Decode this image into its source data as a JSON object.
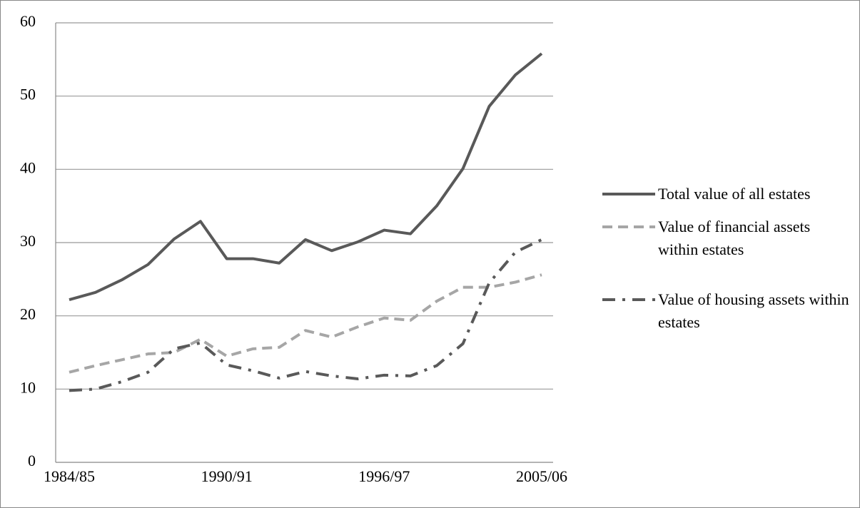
{
  "chart_data": {
    "type": "line",
    "categories": [
      "1984/85",
      null,
      null,
      null,
      null,
      null,
      "1990/91",
      null,
      null,
      null,
      null,
      null,
      "1996/97",
      null,
      null,
      null,
      null,
      null,
      "2005/06"
    ],
    "series": [
      {
        "name": "Total value of all estates",
        "color": "#595959",
        "dash": "solid",
        "values": [
          22.2,
          23.2,
          24.9,
          27.0,
          30.5,
          32.9,
          27.8,
          27.8,
          27.2,
          30.4,
          28.9,
          30.1,
          31.7,
          31.2,
          35.0,
          40.1,
          48.6,
          52.9,
          55.8
        ]
      },
      {
        "name": "Value of financial assets within estates",
        "color": "#a6a6a6",
        "dash": "dashed",
        "values": [
          12.3,
          13.2,
          14.0,
          14.8,
          15.0,
          16.8,
          14.5,
          15.5,
          15.7,
          18.0,
          17.1,
          18.5,
          19.7,
          19.4,
          22.0,
          23.9,
          23.9,
          24.6,
          25.6
        ]
      },
      {
        "name": "Value of housing assets within estates",
        "color": "#595959",
        "dash": "dashdot",
        "values": [
          9.8,
          10.0,
          11.0,
          12.3,
          15.5,
          16.3,
          13.3,
          12.5,
          11.5,
          12.4,
          11.8,
          11.4,
          11.9,
          11.8,
          13.2,
          16.2,
          24.5,
          28.7,
          30.4
        ]
      }
    ],
    "ylim": [
      0,
      60
    ],
    "yticks": [
      0,
      10,
      20,
      30,
      40,
      50,
      60
    ],
    "grid": true,
    "legend": "right"
  }
}
